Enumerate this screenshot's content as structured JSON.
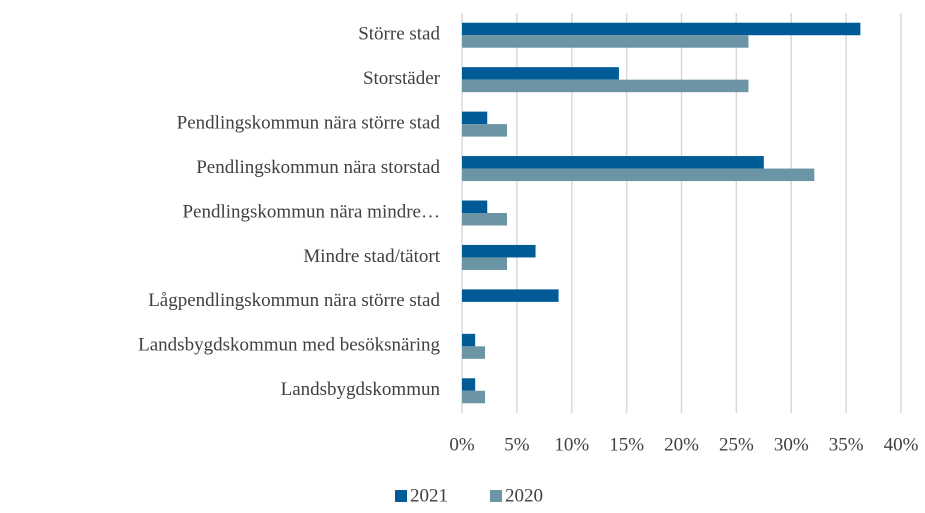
{
  "chart_data": {
    "type": "bar",
    "orientation": "horizontal",
    "categories": [
      "Större stad",
      "Storstäder",
      "Pendlingskommun nära större stad",
      "Pendlingskommun nära storstad",
      "Pendlingskommun nära mindre…",
      "Mindre stad/tätort",
      "Lågpendlingskommun nära större stad",
      "Landsbygdskommun med besöksnäring",
      "Landsbygdskommun"
    ],
    "series": [
      {
        "name": "2021",
        "color": "#005b96",
        "values": [
          36.3,
          14.3,
          2.3,
          27.5,
          2.3,
          6.7,
          8.8,
          1.2,
          1.2
        ]
      },
      {
        "name": "2020",
        "color": "#6b94a4",
        "values": [
          26.1,
          26.1,
          4.1,
          32.1,
          4.1,
          4.1,
          0,
          2.1,
          2.1
        ]
      }
    ],
    "xlim": [
      0,
      40
    ],
    "xticks": [
      {
        "value": 0,
        "label": "0%"
      },
      {
        "value": 5,
        "label": "5%"
      },
      {
        "value": 10,
        "label": "10%"
      },
      {
        "value": 15,
        "label": "15%"
      },
      {
        "value": 20,
        "label": "20%"
      },
      {
        "value": 25,
        "label": "25%"
      },
      {
        "value": 30,
        "label": "30%"
      },
      {
        "value": 35,
        "label": "35%"
      },
      {
        "value": 40,
        "label": "40%"
      }
    ],
    "grid": true,
    "legend": "bottom"
  }
}
